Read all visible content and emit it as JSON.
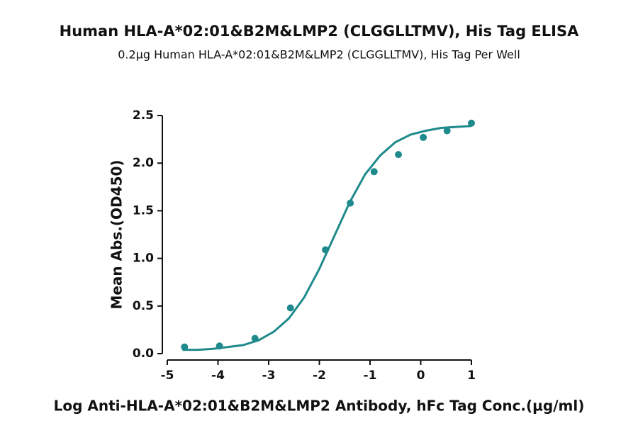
{
  "chart_data": {
    "type": "scatter",
    "title": "Human HLA-A*02:01&B2M&LMP2 (CLGGLLTMV), His Tag ELISA",
    "subtitle": "0.2µg Human HLA-A*02:01&B2M&LMP2 (CLGGLLTMV), His Tag Per Well",
    "x_label": "Log Anti-HLA-A*02:01&B2M&LMP2 Antibody, hFc Tag Conc.(µg/ml)",
    "y_label": "Mean Abs.(OD450)",
    "xlim": [
      -5,
      1
    ],
    "xticks": [
      -5,
      -4,
      -3,
      -2,
      -1,
      0,
      1
    ],
    "ylim": [
      0,
      2.5
    ],
    "yticks": [
      {
        "value": 0,
        "label": "0.0"
      },
      0.5,
      {
        "value": 1,
        "label": "1.0"
      },
      1.5,
      {
        "value": 2,
        "label": "2.0"
      },
      2.5
    ],
    "series": [
      {
        "type": "scatter",
        "color": "#1f8a8c",
        "x": [
          -4.66,
          -3.97,
          -3.27,
          -2.57,
          -1.88,
          -1.39,
          -0.92,
          -0.44,
          0.05,
          0.52,
          1.0
        ],
        "values": [
          0.07,
          0.08,
          0.16,
          0.48,
          1.09,
          1.58,
          1.91,
          2.09,
          2.27,
          2.34,
          2.42
        ]
      },
      {
        "type": "line",
        "color": "#1f8a8c",
        "x": [
          -4.7,
          -4.4,
          -4.1,
          -3.8,
          -3.5,
          -3.2,
          -2.9,
          -2.6,
          -2.3,
          -2.0,
          -1.7,
          -1.4,
          -1.1,
          -0.8,
          -0.5,
          -0.2,
          0.1,
          0.4,
          0.7,
          1.0
        ],
        "values": [
          0.04,
          0.04,
          0.05,
          0.07,
          0.09,
          0.14,
          0.23,
          0.37,
          0.59,
          0.89,
          1.24,
          1.59,
          1.88,
          2.08,
          2.22,
          2.3,
          2.34,
          2.37,
          2.38,
          2.39
        ]
      }
    ]
  }
}
